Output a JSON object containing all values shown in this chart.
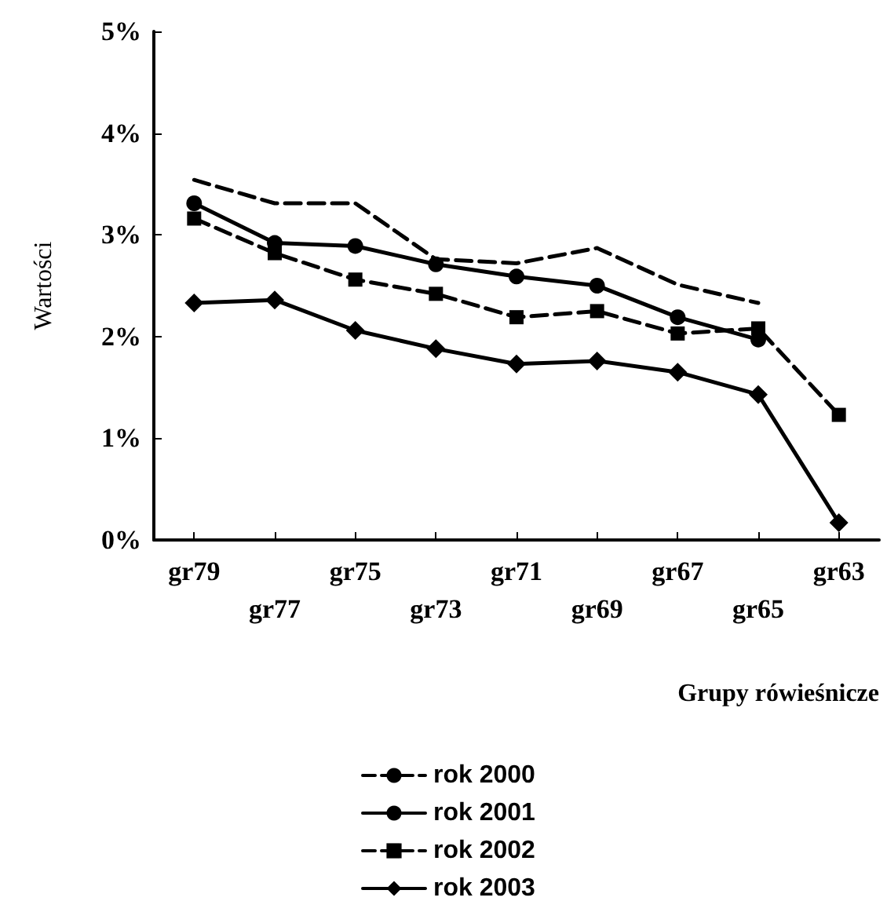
{
  "chart_data": {
    "type": "line",
    "xlabel": "Grupy rówieśnicze",
    "ylabel": "Wartości",
    "categories": [
      "gr79",
      "gr77",
      "gr75",
      "gr73",
      "gr71",
      "gr69",
      "gr67",
      "gr65",
      "gr63"
    ],
    "series": [
      {
        "name": "rok 2000",
        "color": "#000000",
        "line_style": "dashed",
        "marker": "none",
        "values": [
          3.54,
          3.31,
          3.31,
          2.76,
          2.72,
          2.87,
          2.51,
          2.33,
          null
        ]
      },
      {
        "name": "rok 2001",
        "color": "#000000",
        "line_style": "solid",
        "marker": "circle",
        "values": [
          3.31,
          2.92,
          2.89,
          2.71,
          2.59,
          2.5,
          2.19,
          1.97,
          null
        ]
      },
      {
        "name": "rok 2002",
        "color": "#000000",
        "line_style": "dashed",
        "marker": "square",
        "values": [
          3.16,
          2.82,
          2.56,
          2.42,
          2.19,
          2.25,
          2.03,
          2.08,
          1.23
        ]
      },
      {
        "name": "rok 2003",
        "color": "#000000",
        "line_style": "solid",
        "marker": "diamond",
        "values": [
          2.33,
          2.36,
          2.06,
          1.88,
          1.73,
          1.76,
          1.65,
          1.43,
          0.17
        ]
      }
    ],
    "ylim": [
      0,
      5
    ],
    "yticks": [
      {
        "value": 0,
        "label": "0%"
      },
      {
        "value": 1,
        "label": "1%"
      },
      {
        "value": 2,
        "label": "2%"
      },
      {
        "value": 3,
        "label": "3%"
      },
      {
        "value": 4,
        "label": "4%"
      },
      {
        "value": 5,
        "label": "5%"
      }
    ],
    "grid": false,
    "legend": "bottom"
  }
}
